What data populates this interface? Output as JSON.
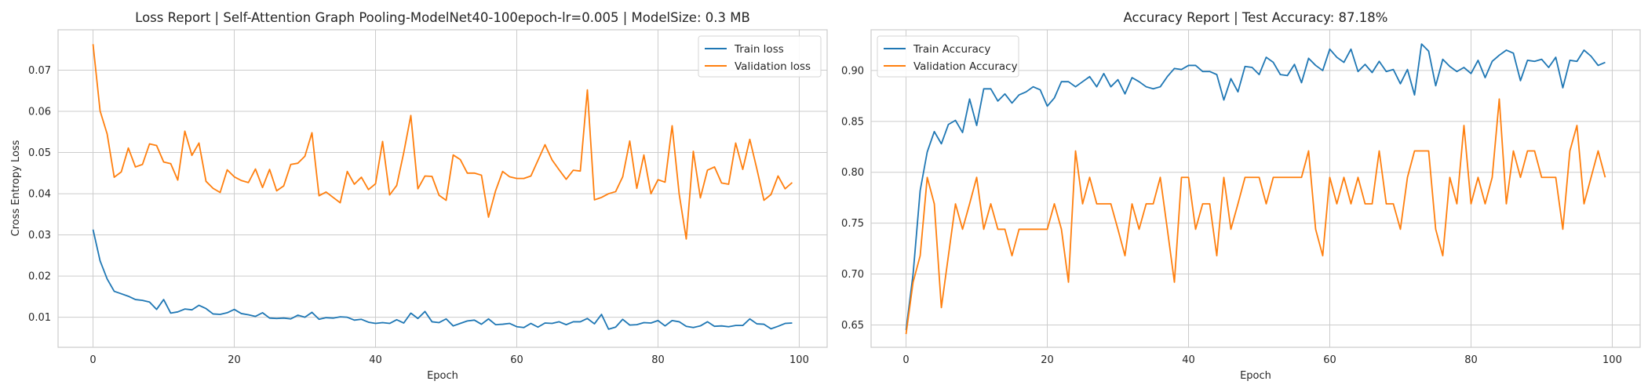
{
  "chart_data": [
    {
      "type": "line",
      "title": "Loss Report | Self-Attention Graph Pooling-ModelNet40-100epoch-lr=0.005 | ModelSize: 0.3 MB",
      "xlabel": "Epoch",
      "ylabel": "Cross Entropy Loss",
      "xlim": [
        -4.95,
        103.95
      ],
      "ylim": [
        0.0027,
        0.0798
      ],
      "xticks": [
        0,
        20,
        40,
        60,
        80,
        100
      ],
      "xtick_labels": [
        "0",
        "20",
        "40",
        "60",
        "80",
        "100"
      ],
      "yticks": [
        0.01,
        0.02,
        0.03,
        0.04,
        0.05,
        0.06,
        0.07
      ],
      "ytick_labels": [
        "0.01",
        "0.02",
        "0.03",
        "0.04",
        "0.05",
        "0.06",
        "0.07"
      ],
      "grid": true,
      "legend_position": "top-right",
      "series": [
        {
          "name": "Train loss",
          "color": "#1f77b4",
          "values": [
            0.0313,
            0.0237,
            0.0193,
            0.0163,
            0.0157,
            0.0151,
            0.0143,
            0.0141,
            0.0137,
            0.0119,
            0.0143,
            0.011,
            0.0113,
            0.012,
            0.0118,
            0.0129,
            0.0121,
            0.0108,
            0.0107,
            0.0111,
            0.0119,
            0.0109,
            0.0106,
            0.0102,
            0.0111,
            0.0098,
            0.0097,
            0.0098,
            0.0096,
            0.0105,
            0.01,
            0.0112,
            0.0095,
            0.0099,
            0.0098,
            0.0101,
            0.01,
            0.0093,
            0.0095,
            0.0088,
            0.0085,
            0.0087,
            0.0085,
            0.0094,
            0.0086,
            0.011,
            0.0097,
            0.0114,
            0.0089,
            0.0087,
            0.0096,
            0.0079,
            0.0085,
            0.0091,
            0.0093,
            0.0083,
            0.0096,
            0.0082,
            0.0083,
            0.0085,
            0.0077,
            0.0075,
            0.0085,
            0.0076,
            0.0086,
            0.0085,
            0.0089,
            0.0082,
            0.0089,
            0.0089,
            0.0097,
            0.0084,
            0.0107,
            0.0071,
            0.0076,
            0.0095,
            0.0081,
            0.0082,
            0.0087,
            0.0086,
            0.0092,
            0.0079,
            0.0092,
            0.0089,
            0.0078,
            0.0075,
            0.0079,
            0.0089,
            0.0078,
            0.0079,
            0.0077,
            0.008,
            0.008,
            0.0096,
            0.0084,
            0.0083,
            0.0072,
            0.0078,
            0.0085,
            0.0086
          ]
        },
        {
          "name": "Validation loss",
          "color": "#ff7f0e",
          "values": [
            0.0763,
            0.0601,
            0.0545,
            0.044,
            0.0453,
            0.0511,
            0.0465,
            0.0471,
            0.0521,
            0.0517,
            0.0477,
            0.0473,
            0.0433,
            0.0552,
            0.0493,
            0.0523,
            0.043,
            0.0413,
            0.0403,
            0.0458,
            0.0441,
            0.0432,
            0.0427,
            0.046,
            0.0415,
            0.0459,
            0.0407,
            0.0419,
            0.0471,
            0.0474,
            0.0491,
            0.0548,
            0.0395,
            0.0404,
            0.0391,
            0.0378,
            0.0454,
            0.0423,
            0.044,
            0.041,
            0.0424,
            0.0527,
            0.0397,
            0.042,
            0.05,
            0.059,
            0.0412,
            0.0443,
            0.0442,
            0.0396,
            0.0384,
            0.0494,
            0.0483,
            0.045,
            0.045,
            0.0445,
            0.0343,
            0.0407,
            0.0454,
            0.0441,
            0.0437,
            0.0437,
            0.0443,
            0.0481,
            0.0519,
            0.0482,
            0.0458,
            0.0435,
            0.0457,
            0.0455,
            0.0652,
            0.0385,
            0.0391,
            0.04,
            0.0405,
            0.0441,
            0.0528,
            0.0413,
            0.0494,
            0.04,
            0.0434,
            0.0428,
            0.0565,
            0.0399,
            0.029,
            0.0503,
            0.039,
            0.0457,
            0.0465,
            0.0426,
            0.0423,
            0.0523,
            0.0459,
            0.0532,
            0.046,
            0.0384,
            0.0398,
            0.0443,
            0.0412,
            0.0427
          ]
        }
      ]
    },
    {
      "type": "line",
      "title": "Accuracy Report | Test Accuracy: 87.18%",
      "xlabel": "Epoch",
      "ylabel": "",
      "xlim": [
        -4.95,
        103.95
      ],
      "ylim": [
        0.628,
        0.94
      ],
      "xticks": [
        0,
        20,
        40,
        60,
        80,
        100
      ],
      "xtick_labels": [
        "0",
        "20",
        "40",
        "60",
        "80",
        "100"
      ],
      "yticks": [
        0.65,
        0.7,
        0.75,
        0.8,
        0.85,
        0.9
      ],
      "ytick_labels": [
        "0.65",
        "0.70",
        "0.75",
        "0.80",
        "0.85",
        "0.90"
      ],
      "grid": true,
      "legend_position": "top-left",
      "series": [
        {
          "name": "Train Accuracy",
          "color": "#1f77b4",
          "values": [
            0.645,
            0.7,
            0.782,
            0.82,
            0.84,
            0.828,
            0.847,
            0.851,
            0.839,
            0.872,
            0.846,
            0.882,
            0.882,
            0.87,
            0.877,
            0.868,
            0.876,
            0.879,
            0.884,
            0.881,
            0.865,
            0.873,
            0.889,
            0.889,
            0.884,
            0.889,
            0.894,
            0.884,
            0.897,
            0.884,
            0.891,
            0.877,
            0.893,
            0.889,
            0.884,
            0.882,
            0.884,
            0.894,
            0.902,
            0.901,
            0.905,
            0.905,
            0.899,
            0.899,
            0.896,
            0.871,
            0.892,
            0.879,
            0.904,
            0.903,
            0.896,
            0.913,
            0.908,
            0.896,
            0.895,
            0.906,
            0.888,
            0.912,
            0.905,
            0.9,
            0.921,
            0.913,
            0.908,
            0.921,
            0.899,
            0.906,
            0.898,
            0.909,
            0.899,
            0.901,
            0.887,
            0.901,
            0.876,
            0.926,
            0.919,
            0.885,
            0.911,
            0.904,
            0.899,
            0.903,
            0.897,
            0.91,
            0.893,
            0.909,
            0.915,
            0.92,
            0.917,
            0.89,
            0.91,
            0.909,
            0.911,
            0.903,
            0.913,
            0.883,
            0.91,
            0.909,
            0.92,
            0.914,
            0.905,
            0.908
          ]
        },
        {
          "name": "Validation Accuracy",
          "color": "#ff7f0e",
          "values": [
            0.641,
            0.692,
            0.718,
            0.795,
            0.769,
            0.667,
            0.718,
            0.769,
            0.744,
            0.769,
            0.795,
            0.744,
            0.769,
            0.744,
            0.744,
            0.718,
            0.744,
            0.744,
            0.744,
            0.744,
            0.744,
            0.769,
            0.744,
            0.692,
            0.821,
            0.769,
            0.795,
            0.769,
            0.769,
            0.769,
            0.744,
            0.718,
            0.769,
            0.744,
            0.769,
            0.769,
            0.795,
            0.744,
            0.692,
            0.795,
            0.795,
            0.744,
            0.769,
            0.769,
            0.718,
            0.795,
            0.744,
            0.769,
            0.795,
            0.795,
            0.795,
            0.769,
            0.795,
            0.795,
            0.795,
            0.795,
            0.795,
            0.821,
            0.744,
            0.718,
            0.795,
            0.769,
            0.795,
            0.769,
            0.795,
            0.769,
            0.769,
            0.821,
            0.769,
            0.769,
            0.744,
            0.795,
            0.821,
            0.821,
            0.821,
            0.744,
            0.718,
            0.795,
            0.769,
            0.846,
            0.769,
            0.795,
            0.769,
            0.795,
            0.872,
            0.769,
            0.821,
            0.795,
            0.821,
            0.821,
            0.795,
            0.795,
            0.795,
            0.744,
            0.821,
            0.846,
            0.769,
            0.795,
            0.821,
            0.795
          ]
        }
      ]
    }
  ]
}
